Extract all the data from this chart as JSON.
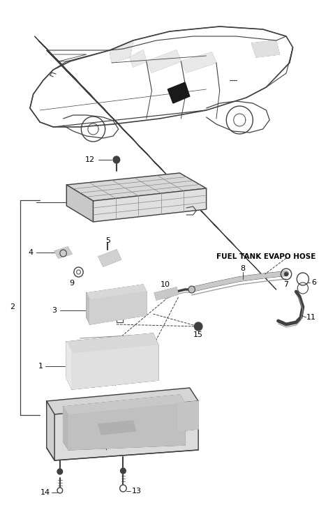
{
  "bg_color": "#ffffff",
  "lc": "#404040",
  "tc": "#000000",
  "annotation": "FUEL TANK EVAPO HOSE",
  "figsize": [
    4.8,
    7.44
  ],
  "dpi": 100
}
